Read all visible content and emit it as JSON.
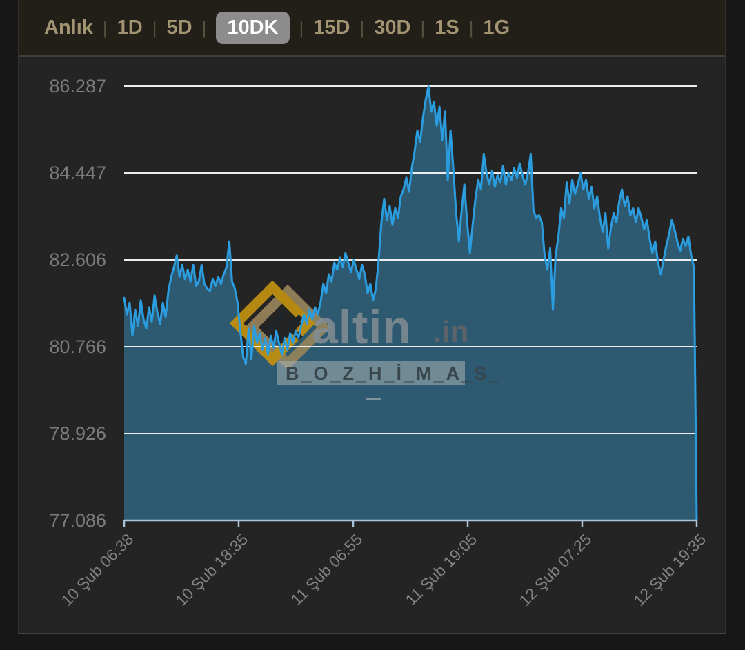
{
  "tabbar": {
    "tabs": [
      {
        "label": "Anlık",
        "selected": false
      },
      {
        "label": "1D",
        "selected": false
      },
      {
        "label": "5D",
        "selected": false
      },
      {
        "label": "10DK",
        "selected": true
      },
      {
        "label": "15D",
        "selected": false
      },
      {
        "label": "30D",
        "selected": false
      },
      {
        "label": "1S",
        "selected": false
      },
      {
        "label": "1G",
        "selected": false
      }
    ],
    "separator": "|"
  },
  "watermark": {
    "brand": "altin",
    "tld": ".in",
    "overlay_text": "B_O_Z_H_İ_M_A_S_",
    "dash": "–"
  },
  "chart_data": {
    "type": "area",
    "title": "",
    "xlabel": "",
    "ylabel": "",
    "ylim": [
      77.086,
      86.287
    ],
    "grid": "horizontal",
    "legend": "none",
    "line_color": "#2b9ddf",
    "fill_color": "#2d5971",
    "y_tick_labels": [
      "86.287",
      "84.447",
      "82.606",
      "80.766",
      "78.926",
      "77.086"
    ],
    "y_ticks": [
      86.287,
      84.447,
      82.606,
      80.766,
      78.926,
      77.086
    ],
    "x_labels": [
      "10 Şub 06:38",
      "10 Şub 18:35",
      "11 Şub 06:55",
      "11 Şub 19:05",
      "12 Şub 07:25",
      "12 Şub 19:35"
    ],
    "values": [
      81.8,
      81.45,
      81.7,
      81.0,
      81.55,
      81.2,
      81.75,
      81.35,
      81.15,
      81.6,
      81.3,
      81.85,
      81.5,
      81.25,
      81.7,
      81.4,
      81.95,
      82.25,
      82.45,
      82.7,
      82.25,
      82.5,
      82.2,
      82.4,
      82.15,
      82.5,
      82.05,
      82.15,
      82.5,
      82.1,
      82.0,
      81.95,
      82.2,
      82.05,
      82.25,
      82.1,
      82.3,
      82.45,
      83.0,
      82.15,
      82.0,
      81.7,
      81.1,
      80.55,
      80.4,
      81.15,
      80.5,
      81.2,
      80.85,
      81.05,
      80.7,
      80.95,
      80.6,
      81.0,
      80.75,
      81.1,
      80.85,
      80.6,
      80.95,
      80.7,
      81.05,
      80.85,
      81.1,
      80.95,
      81.2,
      81.45,
      81.25,
      81.55,
      81.35,
      81.6,
      81.45,
      81.7,
      82.1,
      81.9,
      82.3,
      82.15,
      82.55,
      82.4,
      82.65,
      82.45,
      82.75,
      82.55,
      82.35,
      82.6,
      82.4,
      82.2,
      82.5,
      82.3,
      81.9,
      82.1,
      81.75,
      82.0,
      82.6,
      83.4,
      83.9,
      83.45,
      83.75,
      83.35,
      83.7,
      83.5,
      83.95,
      84.1,
      84.35,
      84.05,
      84.55,
      84.9,
      85.35,
      85.1,
      85.6,
      86.0,
      86.28,
      85.75,
      85.95,
      85.45,
      85.85,
      85.15,
      85.75,
      84.3,
      85.35,
      84.55,
      83.6,
      83.0,
      83.65,
      84.2,
      83.4,
      82.75,
      83.35,
      83.9,
      84.3,
      84.1,
      84.85,
      84.45,
      84.2,
      84.5,
      84.15,
      84.4,
      84.25,
      84.6,
      84.2,
      84.45,
      84.3,
      84.55,
      84.35,
      84.65,
      84.4,
      84.2,
      84.45,
      84.85,
      83.65,
      83.5,
      83.55,
      83.4,
      82.7,
      82.4,
      82.85,
      81.55,
      82.7,
      83.1,
      83.7,
      83.5,
      84.25,
      83.8,
      84.3,
      84.0,
      84.2,
      84.45,
      84.1,
      84.3,
      83.9,
      84.15,
      83.7,
      83.95,
      83.5,
      83.2,
      83.6,
      82.85,
      83.3,
      83.6,
      83.4,
      83.85,
      84.1,
      83.75,
      83.95,
      83.55,
      83.7,
      83.4,
      83.7,
      83.5,
      83.25,
      83.45,
      83.05,
      82.75,
      83.0,
      82.55,
      82.3,
      82.6,
      82.9,
      83.15,
      83.45,
      83.25,
      83.0,
      82.8,
      83.05,
      82.9,
      83.1,
      82.7,
      82.45,
      77.1
    ]
  }
}
